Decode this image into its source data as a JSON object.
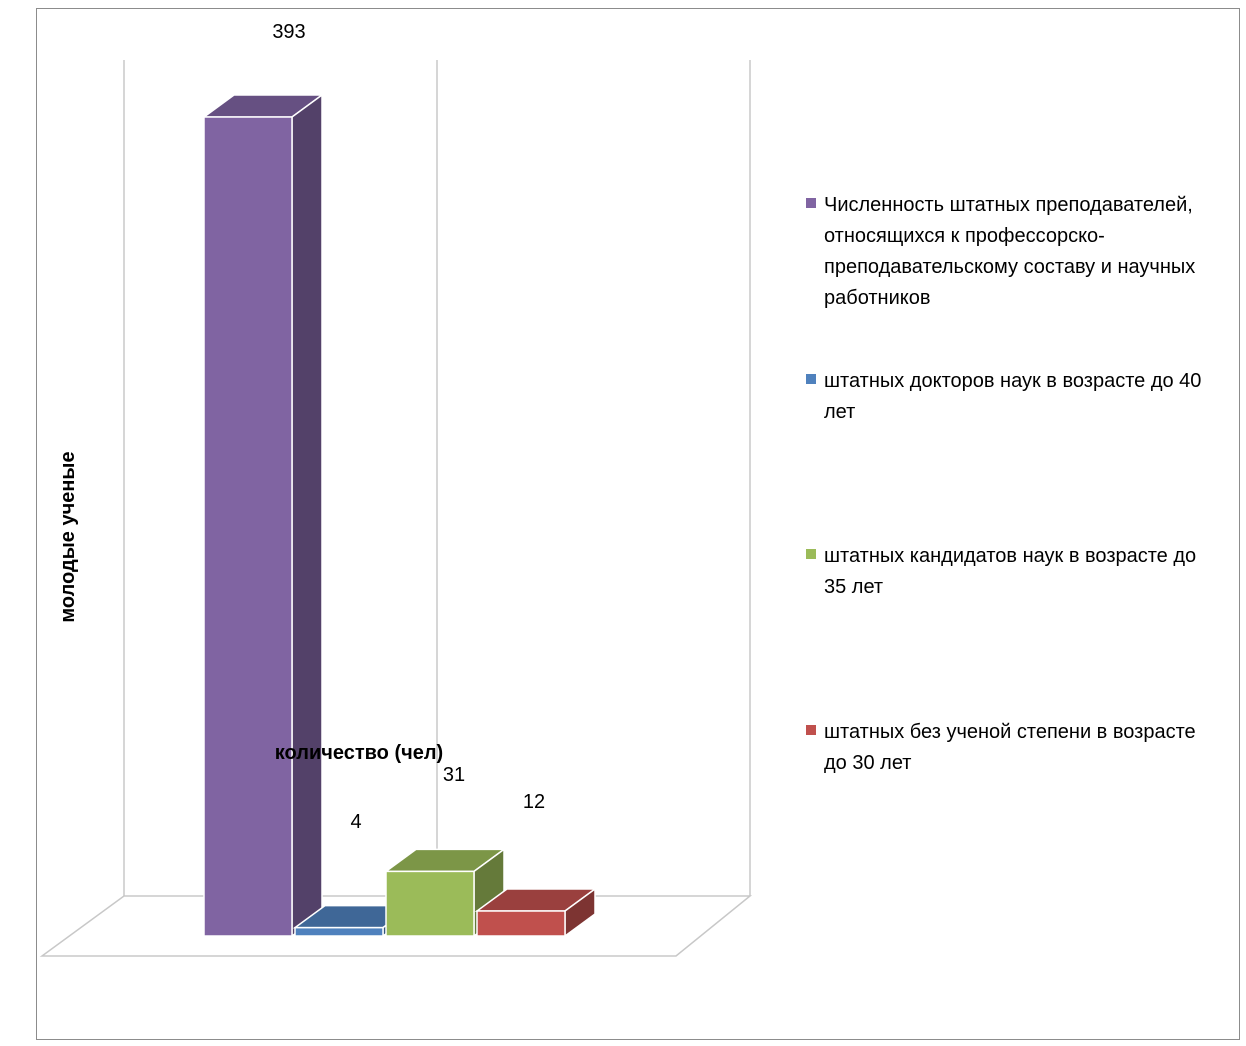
{
  "chart_data": {
    "type": "bar",
    "categories": [
      "количество (чел)"
    ],
    "series": [
      {
        "name": "Численность штатных преподавателей, относящихся к профессорско-преподавательскому составу и научных работников",
        "values": [
          393
        ],
        "color": "#8064A2"
      },
      {
        "name": "штатных докторов наук в возрасте до 40 лет",
        "values": [
          4
        ],
        "color": "#4F81BD"
      },
      {
        "name": "штатных кандидатов наук в возрасте до 35 лет",
        "values": [
          31
        ],
        "color": "#9BBB59"
      },
      {
        "name": "штатных без ученой степени в возрасте до 30 лет",
        "values": [
          12
        ],
        "color": "#C0504D"
      }
    ],
    "data_labels": [
      "393",
      "4",
      "31",
      "12"
    ],
    "xlabel": "количество (чел)",
    "ylabel": "молодые ученые",
    "title": "",
    "three_d": true,
    "grid": true,
    "legend_position": "right"
  }
}
